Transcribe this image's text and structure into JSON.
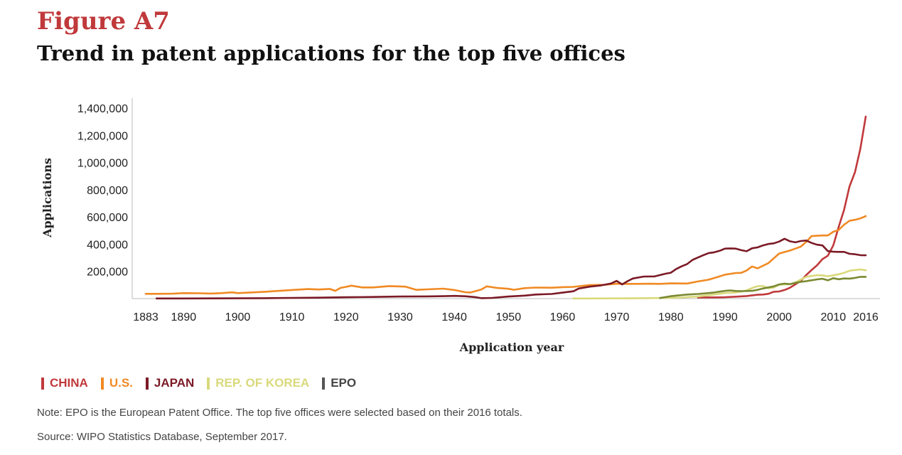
{
  "figure": {
    "label": "Figure A7",
    "title": "Trend in patent applications for the top five offices"
  },
  "notes": {
    "note": "Note: EPO is the European Patent Office. The top five offices were selected based on their 2016 totals.",
    "source": "Source: WIPO Statistics Database, September 2017."
  },
  "chart_data": {
    "type": "line",
    "title": "Trend in patent applications for the top five offices",
    "xlabel": "Application year",
    "ylabel": "Applications",
    "xlim": [
      1883,
      2016
    ],
    "ylim": [
      0,
      1400000
    ],
    "x_ticks": [
      1883,
      1890,
      1900,
      1910,
      1920,
      1930,
      1940,
      1950,
      1960,
      1970,
      1980,
      1990,
      2000,
      2010,
      2016
    ],
    "x_tick_labels": [
      "1883",
      "1890",
      "1900",
      "1910",
      "1920",
      "1930",
      "1940",
      "1950",
      "1960",
      "1970",
      "1980",
      "1990",
      "2000",
      "2010",
      "2016"
    ],
    "y_ticks": [
      200000,
      400000,
      600000,
      800000,
      1000000,
      1200000,
      1400000
    ],
    "y_tick_labels": [
      "200,000",
      "400,000",
      "600,000",
      "800,000",
      "1,000,000",
      "1,200,000",
      "1,400,000"
    ],
    "grid": false,
    "legend_position": "bottom-left",
    "series": [
      {
        "name": "CHINA",
        "color": "#c0393b",
        "points": [
          [
            1985,
            8500
          ],
          [
            1988,
            9000
          ],
          [
            1990,
            10000
          ],
          [
            1992,
            14000
          ],
          [
            1994,
            19000
          ],
          [
            1996,
            28000
          ],
          [
            1997,
            30000
          ],
          [
            1998,
            35000
          ],
          [
            1999,
            50000
          ],
          [
            2000,
            52000
          ],
          [
            2001,
            63000
          ],
          [
            2002,
            80000
          ],
          [
            2003,
            105000
          ],
          [
            2004,
            130000
          ],
          [
            2005,
            173000
          ],
          [
            2006,
            210000
          ],
          [
            2007,
            245000
          ],
          [
            2008,
            290000
          ],
          [
            2009,
            315000
          ],
          [
            2010,
            391000
          ],
          [
            2011,
            526000
          ],
          [
            2012,
            652000
          ],
          [
            2013,
            825000
          ],
          [
            2014,
            928000
          ],
          [
            2015,
            1101000
          ],
          [
            2016,
            1338000
          ]
        ]
      },
      {
        "name": "U.S.",
        "color": "#f08a24",
        "points": [
          [
            1883,
            35000
          ],
          [
            1885,
            35000
          ],
          [
            1888,
            36000
          ],
          [
            1890,
            40000
          ],
          [
            1893,
            39000
          ],
          [
            1895,
            37000
          ],
          [
            1897,
            40000
          ],
          [
            1899,
            46000
          ],
          [
            1900,
            40000
          ],
          [
            1902,
            44000
          ],
          [
            1905,
            50000
          ],
          [
            1908,
            58000
          ],
          [
            1910,
            63000
          ],
          [
            1913,
            70000
          ],
          [
            1915,
            67000
          ],
          [
            1917,
            71000
          ],
          [
            1918,
            57000
          ],
          [
            1919,
            79000
          ],
          [
            1920,
            86000
          ],
          [
            1921,
            95000
          ],
          [
            1923,
            82000
          ],
          [
            1925,
            82000
          ],
          [
            1928,
            92000
          ],
          [
            1931,
            88000
          ],
          [
            1933,
            64000
          ],
          [
            1935,
            68000
          ],
          [
            1938,
            73000
          ],
          [
            1940,
            63000
          ],
          [
            1942,
            47000
          ],
          [
            1943,
            45000
          ],
          [
            1945,
            67000
          ],
          [
            1946,
            90000
          ],
          [
            1948,
            78000
          ],
          [
            1950,
            72000
          ],
          [
            1951,
            65000
          ],
          [
            1953,
            77000
          ],
          [
            1955,
            81000
          ],
          [
            1958,
            80000
          ],
          [
            1960,
            84000
          ],
          [
            1962,
            86000
          ],
          [
            1965,
            100000
          ],
          [
            1968,
            102000
          ],
          [
            1970,
            109000
          ],
          [
            1972,
            108000
          ],
          [
            1974,
            108000
          ],
          [
            1976,
            109000
          ],
          [
            1978,
            108000
          ],
          [
            1980,
            112000
          ],
          [
            1983,
            111000
          ],
          [
            1985,
            126000
          ],
          [
            1987,
            139000
          ],
          [
            1989,
            163000
          ],
          [
            1990,
            176000
          ],
          [
            1992,
            188000
          ],
          [
            1993,
            189000
          ],
          [
            1994,
            207000
          ],
          [
            1995,
            236000
          ],
          [
            1996,
            222000
          ],
          [
            1998,
            260000
          ],
          [
            2000,
            331000
          ],
          [
            2002,
            353000
          ],
          [
            2003,
            367000
          ],
          [
            2004,
            382000
          ],
          [
            2005,
            417000
          ],
          [
            2006,
            459000
          ],
          [
            2007,
            462000
          ],
          [
            2008,
            464000
          ],
          [
            2009,
            464000
          ],
          [
            2010,
            491000
          ],
          [
            2011,
            504000
          ],
          [
            2012,
            543000
          ],
          [
            2013,
            572000
          ],
          [
            2014,
            579000
          ],
          [
            2015,
            589000
          ],
          [
            2016,
            606000
          ]
        ]
      },
      {
        "name": "JAPAN",
        "color": "#7b1a26",
        "points": [
          [
            1885,
            1000
          ],
          [
            1890,
            1000
          ],
          [
            1895,
            1500
          ],
          [
            1900,
            2000
          ],
          [
            1905,
            3000
          ],
          [
            1910,
            5000
          ],
          [
            1915,
            7000
          ],
          [
            1920,
            10000
          ],
          [
            1925,
            12000
          ],
          [
            1930,
            15000
          ],
          [
            1935,
            16000
          ],
          [
            1938,
            18000
          ],
          [
            1940,
            20000
          ],
          [
            1942,
            17000
          ],
          [
            1944,
            10000
          ],
          [
            1945,
            3000
          ],
          [
            1947,
            5000
          ],
          [
            1950,
            15000
          ],
          [
            1953,
            22000
          ],
          [
            1955,
            30000
          ],
          [
            1958,
            34000
          ],
          [
            1960,
            44000
          ],
          [
            1962,
            54000
          ],
          [
            1963,
            74000
          ],
          [
            1965,
            88000
          ],
          [
            1967,
            96000
          ],
          [
            1969,
            112000
          ],
          [
            1970,
            130000
          ],
          [
            1971,
            104000
          ],
          [
            1972,
            128000
          ],
          [
            1973,
            148000
          ],
          [
            1975,
            162000
          ],
          [
            1977,
            163000
          ],
          [
            1979,
            183000
          ],
          [
            1980,
            190000
          ],
          [
            1981,
            218000
          ],
          [
            1982,
            237000
          ],
          [
            1983,
            254000
          ],
          [
            1984,
            284000
          ],
          [
            1985,
            302000
          ],
          [
            1986,
            319000
          ],
          [
            1987,
            335000
          ],
          [
            1988,
            340000
          ],
          [
            1989,
            351000
          ],
          [
            1990,
            367000
          ],
          [
            1991,
            369000
          ],
          [
            1992,
            367000
          ],
          [
            1993,
            356000
          ],
          [
            1994,
            348000
          ],
          [
            1995,
            370000
          ],
          [
            1996,
            376000
          ],
          [
            1997,
            391000
          ],
          [
            1998,
            401000
          ],
          [
            1999,
            406000
          ],
          [
            2000,
            419000
          ],
          [
            2001,
            440000
          ],
          [
            2002,
            421000
          ],
          [
            2003,
            413000
          ],
          [
            2004,
            423000
          ],
          [
            2005,
            427000
          ],
          [
            2006,
            409000
          ],
          [
            2007,
            396000
          ],
          [
            2008,
            391000
          ],
          [
            2009,
            349000
          ],
          [
            2010,
            344000
          ],
          [
            2011,
            343000
          ],
          [
            2012,
            343000
          ],
          [
            2013,
            329000
          ],
          [
            2014,
            326000
          ],
          [
            2015,
            319000
          ],
          [
            2016,
            318000
          ]
        ]
      },
      {
        "name": "REP. OF KOREA",
        "color": "#d9d97c",
        "points": [
          [
            1962,
            1000
          ],
          [
            1965,
            1000
          ],
          [
            1970,
            1500
          ],
          [
            1975,
            3000
          ],
          [
            1980,
            6000
          ],
          [
            1982,
            8000
          ],
          [
            1985,
            16000
          ],
          [
            1988,
            30000
          ],
          [
            1990,
            41000
          ],
          [
            1992,
            45000
          ],
          [
            1993,
            51000
          ],
          [
            1994,
            60000
          ],
          [
            1995,
            78000
          ],
          [
            1996,
            91000
          ],
          [
            1997,
            93000
          ],
          [
            1998,
            76000
          ],
          [
            1999,
            81000
          ],
          [
            2000,
            102000
          ],
          [
            2001,
            104000
          ],
          [
            2002,
            106000
          ],
          [
            2003,
            118000
          ],
          [
            2004,
            140000
          ],
          [
            2005,
            160000
          ],
          [
            2006,
            166000
          ],
          [
            2007,
            172000
          ],
          [
            2008,
            171000
          ],
          [
            2009,
            164000
          ],
          [
            2010,
            171000
          ],
          [
            2011,
            179000
          ],
          [
            2012,
            189000
          ],
          [
            2013,
            205000
          ],
          [
            2014,
            210000
          ],
          [
            2015,
            214000
          ],
          [
            2016,
            208000
          ]
        ]
      },
      {
        "name": "EPO",
        "color": "#7a8a32",
        "points": [
          [
            1978,
            4000
          ],
          [
            1980,
            18000
          ],
          [
            1983,
            30000
          ],
          [
            1985,
            34000
          ],
          [
            1987,
            41000
          ],
          [
            1988,
            45000
          ],
          [
            1989,
            51000
          ],
          [
            1990,
            57000
          ],
          [
            1991,
            60000
          ],
          [
            1992,
            56000
          ],
          [
            1993,
            55000
          ],
          [
            1994,
            56000
          ],
          [
            1995,
            57000
          ],
          [
            1996,
            64000
          ],
          [
            1997,
            74000
          ],
          [
            1998,
            82000
          ],
          [
            1999,
            90000
          ],
          [
            2000,
            104000
          ],
          [
            2001,
            110000
          ],
          [
            2002,
            106000
          ],
          [
            2003,
            116000
          ],
          [
            2004,
            123000
          ],
          [
            2005,
            128000
          ],
          [
            2006,
            135000
          ],
          [
            2007,
            141000
          ],
          [
            2008,
            146000
          ],
          [
            2009,
            134000
          ],
          [
            2010,
            150000
          ],
          [
            2011,
            142000
          ],
          [
            2012,
            148000
          ],
          [
            2013,
            147000
          ],
          [
            2014,
            152000
          ],
          [
            2015,
            160000
          ],
          [
            2016,
            160000
          ]
        ]
      }
    ]
  }
}
